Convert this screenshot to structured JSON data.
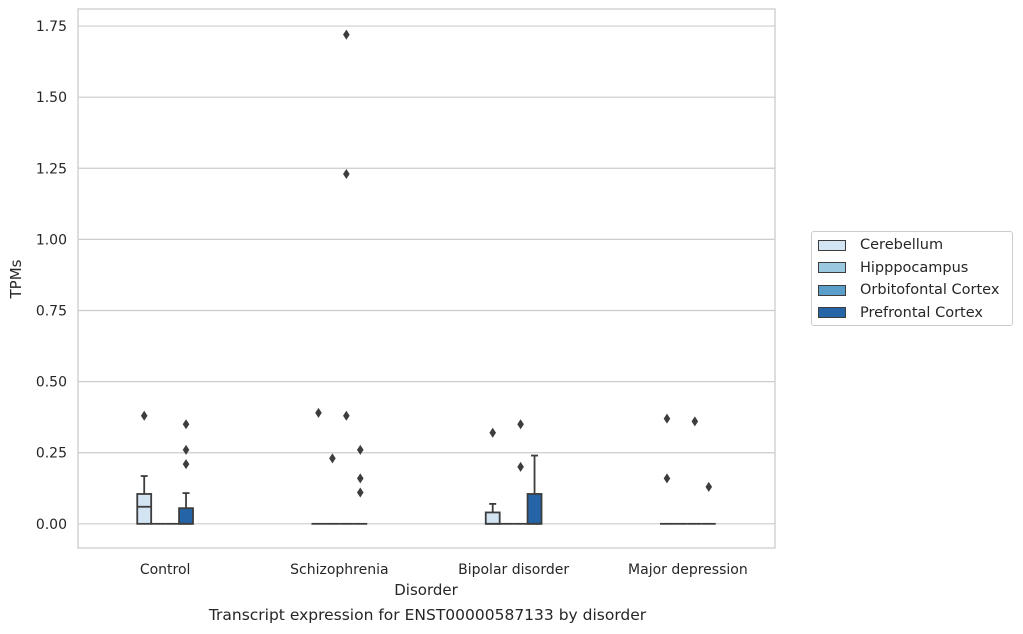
{
  "chart_data": {
    "type": "box",
    "title": "Transcript expression for ENST00000587133 by disorder",
    "xlabel": "Disorder",
    "ylabel": "TPMs",
    "ylim": [
      -0.085,
      1.81
    ],
    "yticks": [
      "0.00",
      "0.25",
      "0.50",
      "0.75",
      "1.00",
      "1.25",
      "1.50",
      "1.75"
    ],
    "categories": [
      "Control",
      "Schizophrenia",
      "Bipolar disorder",
      "Major depression"
    ],
    "grid": true,
    "legend_position": "right",
    "series": [
      {
        "name": "Cerebellum",
        "color": "#d3e4f3",
        "boxes": [
          {
            "q1": 0.0,
            "median": 0.06,
            "q3": 0.105,
            "whisker_low": 0.0,
            "whisker_high": 0.168,
            "outliers": [
              0.38
            ]
          },
          {
            "q1": 0.0,
            "median": 0.0,
            "q3": 0.0,
            "whisker_low": 0.0,
            "whisker_high": 0.0,
            "outliers": [
              0.39
            ]
          },
          {
            "q1": 0.0,
            "median": 0.0,
            "q3": 0.04,
            "whisker_low": 0.0,
            "whisker_high": 0.07,
            "outliers": [
              0.32
            ]
          },
          {
            "q1": 0.0,
            "median": 0.0,
            "q3": 0.0,
            "whisker_low": 0.0,
            "whisker_high": 0.0,
            "outliers": [
              0.37,
              0.16
            ]
          }
        ]
      },
      {
        "name": "Hipppocampus",
        "color": "#9ac8e0",
        "boxes": [
          {
            "q1": 0.0,
            "median": 0.0,
            "q3": 0.0,
            "whisker_low": 0.0,
            "whisker_high": 0.0,
            "outliers": []
          },
          {
            "q1": 0.0,
            "median": 0.0,
            "q3": 0.0,
            "whisker_low": 0.0,
            "whisker_high": 0.0,
            "outliers": [
              0.23
            ]
          },
          {
            "q1": 0.0,
            "median": 0.0,
            "q3": 0.0,
            "whisker_low": 0.0,
            "whisker_high": 0.0,
            "outliers": []
          },
          {
            "q1": 0.0,
            "median": 0.0,
            "q3": 0.0,
            "whisker_low": 0.0,
            "whisker_high": 0.0,
            "outliers": []
          }
        ]
      },
      {
        "name": "Orbitofontal Cortex",
        "color": "#5a9ec9",
        "boxes": [
          {
            "q1": 0.0,
            "median": 0.0,
            "q3": 0.0,
            "whisker_low": 0.0,
            "whisker_high": 0.0,
            "outliers": []
          },
          {
            "q1": 0.0,
            "median": 0.0,
            "q3": 0.0,
            "whisker_low": 0.0,
            "whisker_high": 0.0,
            "outliers": [
              1.72,
              1.23,
              0.38
            ]
          },
          {
            "q1": 0.0,
            "median": 0.0,
            "q3": 0.0,
            "whisker_low": 0.0,
            "whisker_high": 0.0,
            "outliers": [
              0.35,
              0.2
            ]
          },
          {
            "q1": 0.0,
            "median": 0.0,
            "q3": 0.0,
            "whisker_low": 0.0,
            "whisker_high": 0.0,
            "outliers": [
              0.36
            ]
          }
        ]
      },
      {
        "name": "Prefrontal Cortex",
        "color": "#2565a7",
        "boxes": [
          {
            "q1": 0.0,
            "median": 0.0,
            "q3": 0.055,
            "whisker_low": 0.0,
            "whisker_high": 0.108,
            "outliers": [
              0.35,
              0.26,
              0.21
            ]
          },
          {
            "q1": 0.0,
            "median": 0.0,
            "q3": 0.0,
            "whisker_low": 0.0,
            "whisker_high": 0.0,
            "outliers": [
              0.26,
              0.16,
              0.11
            ]
          },
          {
            "q1": 0.0,
            "median": 0.0,
            "q3": 0.105,
            "whisker_low": 0.0,
            "whisker_high": 0.24,
            "outliers": []
          },
          {
            "q1": 0.0,
            "median": 0.0,
            "q3": 0.0,
            "whisker_low": 0.0,
            "whisker_high": 0.0,
            "outliers": [
              0.13
            ]
          }
        ]
      }
    ]
  }
}
